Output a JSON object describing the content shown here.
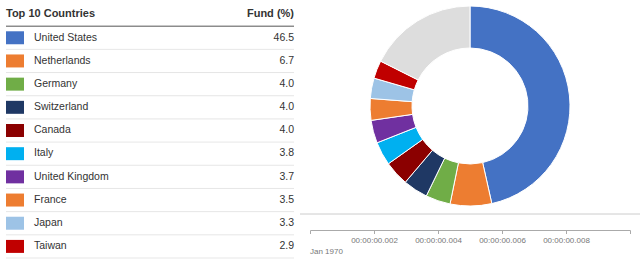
{
  "chart_data": [
    {
      "type": "pie",
      "title": "Top 10 Countries",
      "ylabel": "Fund (%)",
      "categories": [
        "United States",
        "Netherlands",
        "Germany",
        "Switzerland",
        "Canada",
        "Italy",
        "United Kingdom",
        "France",
        "Japan",
        "Taiwan",
        null
      ],
      "values": [
        46.5,
        6.7,
        4.0,
        4.0,
        4.0,
        3.8,
        3.7,
        3.5,
        3.3,
        2.9,
        17.6
      ],
      "value_labels": [
        "46.5",
        "6.7",
        "4.0",
        "4.0",
        "4.0",
        "3.8",
        "3.7",
        "3.5",
        "3.3",
        "2.9",
        null
      ],
      "colors": [
        "#4472C4",
        "#ED7D31",
        "#70AD47",
        "#1F3864",
        "#8B0000",
        "#00B0F0",
        "#7030A0",
        "#ED7D31",
        "#9DC3E6",
        "#C00000",
        "#DDDDDD"
      ],
      "legend": "left"
    },
    {
      "type": "timeline",
      "xlim": [
        0,
        0.01
      ],
      "xticks": [
        {
          "value": 0.002,
          "label": "00:00:00.002"
        },
        {
          "value": 0.004,
          "label": "00:00:00.004"
        },
        {
          "value": 0.006,
          "label": "00:00:00.006"
        },
        {
          "value": 0.008,
          "label": "00:00:00.008"
        }
      ],
      "annotations": [
        "Jan 1970"
      ]
    }
  ]
}
